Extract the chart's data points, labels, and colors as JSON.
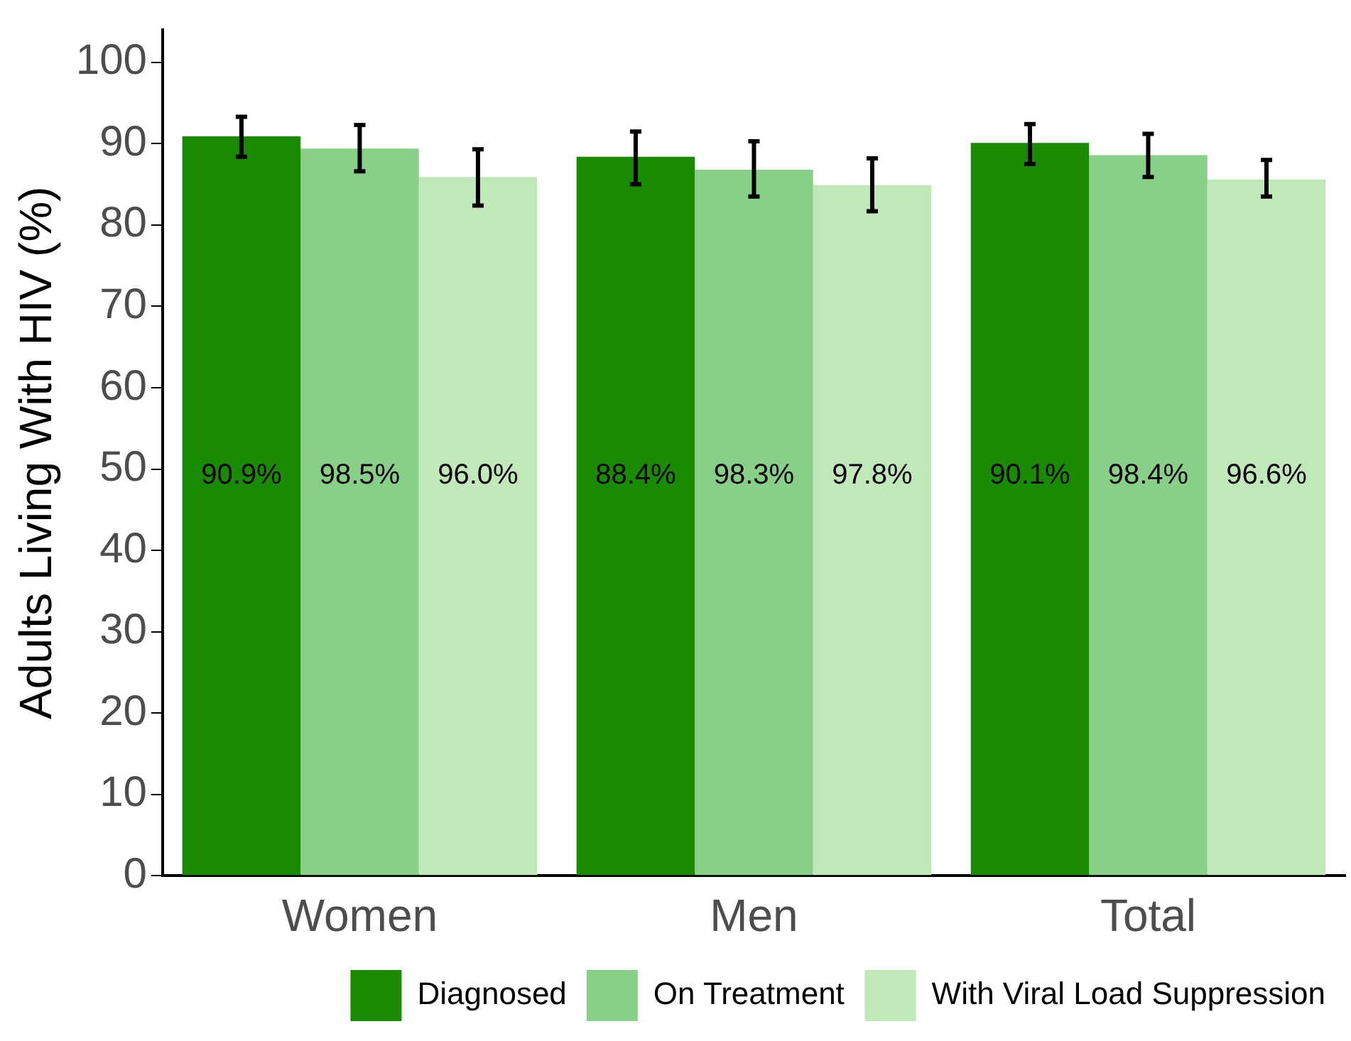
{
  "chart_data": {
    "type": "bar",
    "ylabel": "Adults Living With HIV (%)",
    "categories": [
      "Women",
      "Men",
      "Total"
    ],
    "series": [
      {
        "name": "Diagnosed",
        "color": "#1a8a00",
        "values": [
          90.9,
          88.4,
          90.1
        ],
        "errors": [
          [
            88.4,
            93.3
          ],
          [
            85.0,
            91.5
          ],
          [
            87.5,
            92.4
          ]
        ]
      },
      {
        "name": "On Treatment",
        "color": "#88d088",
        "values": [
          89.4,
          86.8,
          88.6
        ],
        "errors": [
          [
            86.6,
            92.3
          ],
          [
            83.5,
            90.3
          ],
          [
            85.9,
            91.2
          ]
        ]
      },
      {
        "name": "With Viral Load Suppression",
        "color": "#c0e8b8",
        "values": [
          85.9,
          84.9,
          85.6
        ],
        "errors": [
          [
            82.4,
            89.3
          ],
          [
            81.7,
            88.2
          ],
          [
            83.5,
            88.0
          ]
        ]
      }
    ],
    "annotations": [
      "90.9%",
      "98.5%",
      "96.0%",
      "88.4%",
      "98.3%",
      "97.8%",
      "90.1%",
      "98.4%",
      "96.6%"
    ],
    "ylim": [
      0,
      104
    ],
    "yticks": [
      0,
      10,
      20,
      30,
      40,
      50,
      60,
      70,
      80,
      90,
      100
    ],
    "grid": false,
    "legend": "bottom"
  }
}
